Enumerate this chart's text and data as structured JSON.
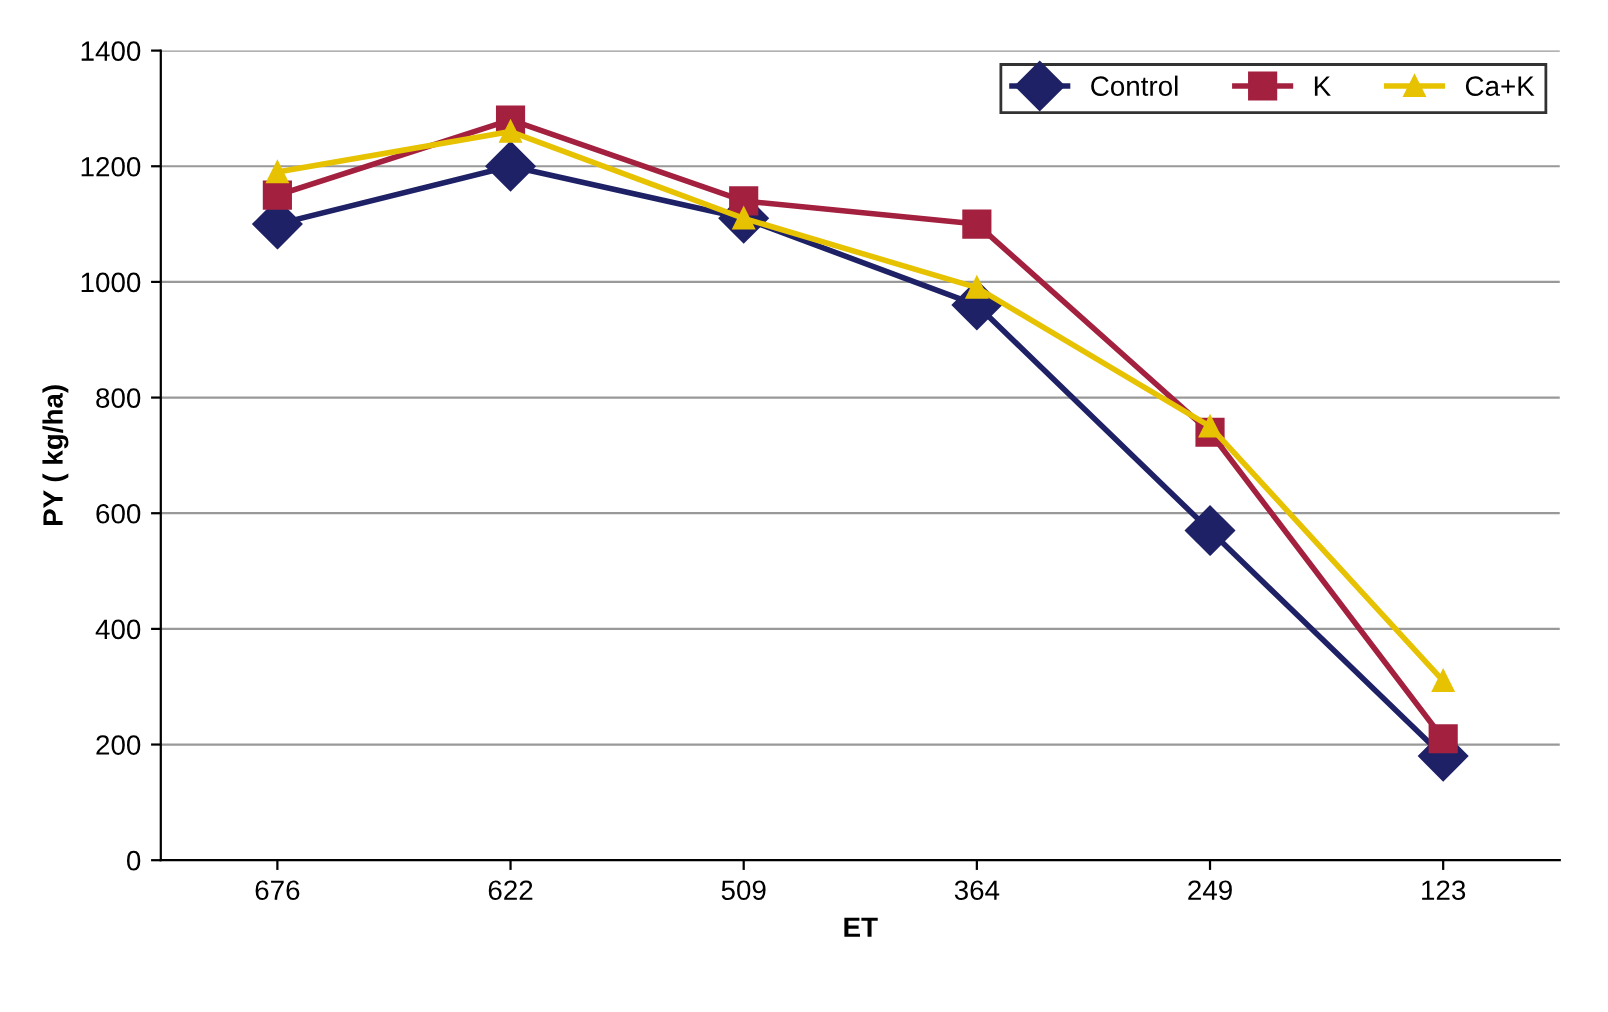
{
  "chart_data": {
    "type": "line",
    "xlabel": "ET",
    "ylabel": "PY ( kg/ha)",
    "categories": [
      "676",
      "622",
      "509",
      "364",
      "249",
      "123"
    ],
    "series": [
      {
        "name": "Control",
        "color": "#1f2166",
        "marker": "diamond",
        "values": [
          1100,
          1200,
          1110,
          960,
          570,
          180
        ]
      },
      {
        "name": "K",
        "color": "#a3203f",
        "marker": "square",
        "values": [
          1150,
          1280,
          1140,
          1100,
          740,
          210
        ]
      },
      {
        "name": "Ca+K",
        "color": "#e6c200",
        "marker": "triangle",
        "values": [
          1190,
          1260,
          1110,
          990,
          750,
          310
        ]
      }
    ],
    "ylim": [
      0,
      1400
    ],
    "yticks": [
      0,
      200,
      400,
      600,
      800,
      1000,
      1200,
      1400
    ],
    "grid": "y",
    "legend": "top right",
    "line_style": "solid"
  }
}
